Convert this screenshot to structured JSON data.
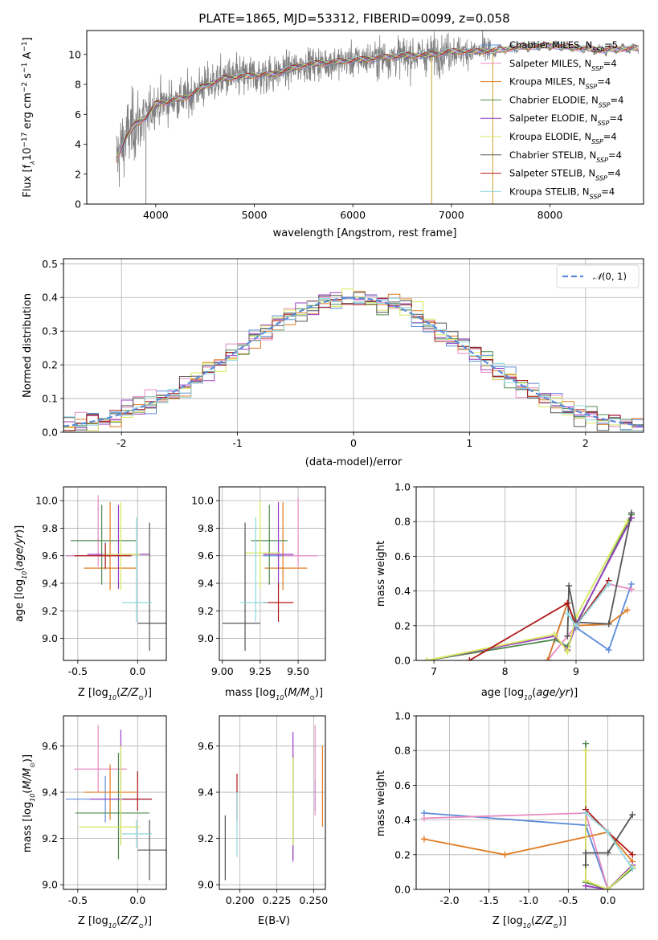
{
  "title": "PLATE=1865, MJD=53312, FIBERID=0099, z=0.058",
  "colors": {
    "Chabrier MILES": "#5b8bd8",
    "Salpeter MILES": "#e78ac3",
    "Kroupa MILES": "#e07b21",
    "Chabrier ELODIE": "#4f8a4f",
    "Salpeter ELODIE": "#9b3cc4",
    "Kroupa ELODIE": "#d6e85a",
    "Chabrier STELIB": "#555555",
    "Salpeter STELIB": "#b01818",
    "Kroupa STELIB": "#8fd6dd",
    "data": "#808080",
    "gaussian": "#5b8bd8"
  },
  "chart_data": [
    {
      "id": "spectrum",
      "type": "line",
      "title": "PLATE=1865, MJD=53312, FIBERID=0099, z=0.058",
      "xlabel": "wavelength [Angstrom, rest frame]",
      "ylabel": "Flux [fλ10⁻¹⁷ erg cm⁻² s⁻¹ A⁻¹]",
      "xlim": [
        3300,
        8950
      ],
      "ylim": [
        0,
        11.6
      ],
      "xticks": [
        4000,
        5000,
        6000,
        7000,
        8000
      ],
      "yticks": [
        0,
        2,
        4,
        6,
        8,
        10
      ],
      "legend_position": "upper right",
      "legend": [
        {
          "label": "Chabrier MILES, N",
          "sub": "SSP",
          "tail": "=5"
        },
        {
          "label": "Salpeter MILES, N",
          "sub": "SSP",
          "tail": "=4"
        },
        {
          "label": "Kroupa MILES, N",
          "sub": "SSP",
          "tail": "=4"
        },
        {
          "label": "Chabrier ELODIE, N",
          "sub": "SSP",
          "tail": "=4"
        },
        {
          "label": "Salpeter ELODIE, N",
          "sub": "SSP",
          "tail": "=4"
        },
        {
          "label": "Kroupa ELODIE, N",
          "sub": "SSP",
          "tail": "=4"
        },
        {
          "label": "Chabrier STELIB, N",
          "sub": "SSP",
          "tail": "=4"
        },
        {
          "label": "Salpeter STELIB, N",
          "sub": "SSP",
          "tail": "=4"
        },
        {
          "label": "Kroupa STELIB, N",
          "sub": "SSP",
          "tail": "=4"
        }
      ],
      "continuum": {
        "x": [
          3600,
          3700,
          3800,
          3900,
          4000,
          4100,
          4200,
          4300,
          4500,
          4700,
          5000,
          5200,
          5500,
          5800,
          6000,
          6300,
          6500,
          6800,
          7000,
          7300,
          7500,
          7700,
          8000,
          8200,
          8500,
          8800
        ],
        "y": [
          3.0,
          4.5,
          5.4,
          5.8,
          6.7,
          6.8,
          7.0,
          7.1,
          7.9,
          8.4,
          8.6,
          8.7,
          9.3,
          9.5,
          9.6,
          9.8,
          9.9,
          10.0,
          10.2,
          10.2,
          10.3,
          10.5,
          10.6,
          10.5,
          10.3,
          10.4
        ]
      },
      "data_noise_end": 7420
    },
    {
      "id": "residuals",
      "type": "bar",
      "xlabel": "(data-model)/error",
      "ylabel": "Normed distribution",
      "xlim": [
        -2.5,
        2.5
      ],
      "ylim": [
        0,
        0.515
      ],
      "xticks": [
        -2,
        -1,
        0,
        1,
        2
      ],
      "yticks": [
        0.0,
        0.1,
        0.2,
        0.3,
        0.4,
        0.5
      ],
      "legend_position": "upper right",
      "gaussian_label": "𝒩(0, 1)",
      "bin_width": 0.1
    },
    {
      "id": "age-vs-Z",
      "type": "scatter",
      "xlabel": "Z [log₁₀(Z/Z⊙)]",
      "ylabel": "age  [log₁₀(age/yr)]",
      "xlim": [
        -0.62,
        0.24
      ],
      "ylim": [
        8.84,
        10.1
      ],
      "xticks": [
        -0.5,
        0.0
      ],
      "yticks": [
        9.0,
        9.2,
        9.4,
        9.6,
        9.8,
        10.0
      ],
      "points": [
        {
          "model": "Chabrier MILES",
          "x": -0.27,
          "xerr": [
            0.33,
            0.21
          ],
          "y": 9.6,
          "yerr": [
            0.1,
            0.1
          ]
        },
        {
          "model": "Salpeter MILES",
          "x": -0.33,
          "xerr": [
            0.27,
            0.24
          ],
          "y": 9.6,
          "yerr": [
            0.08,
            0.44
          ]
        },
        {
          "model": "Kroupa MILES",
          "x": -0.23,
          "xerr": [
            0.22,
            0.22
          ],
          "y": 9.51,
          "yerr": [
            0.16,
            0.48
          ]
        },
        {
          "model": "Chabrier ELODIE",
          "x": -0.3,
          "xerr": [
            0.26,
            0.29
          ],
          "y": 9.71,
          "yerr": [
            0.32,
            0.26
          ]
        },
        {
          "model": "Salpeter ELODIE",
          "x": -0.16,
          "xerr": [
            0.26,
            0.26
          ],
          "y": 9.61,
          "yerr": [
            0.25,
            0.36
          ]
        },
        {
          "model": "Kroupa ELODIE",
          "x": -0.14,
          "xerr": [
            0.15,
            0.16
          ],
          "y": 9.61,
          "yerr": [
            0.26,
            0.38
          ]
        },
        {
          "model": "Chabrier STELIB",
          "x": 0.1,
          "xerr": [
            0.1,
            0.21
          ],
          "y": 9.11,
          "yerr": [
            0.2,
            0.73
          ]
        },
        {
          "model": "Salpeter STELIB",
          "x": -0.27,
          "xerr": [
            0.26,
            0.22
          ],
          "y": 9.6,
          "yerr": [
            0.09,
            0.09
          ]
        },
        {
          "model": "Kroupa STELIB",
          "x": -0.01,
          "xerr": [
            0.12,
            0.13
          ],
          "y": 9.26,
          "yerr": [
            0.14,
            0.62
          ]
        }
      ]
    },
    {
      "id": "age-vs-mass",
      "type": "scatter",
      "xlabel": "mass [log₁₀(M/M⊙)]",
      "ylabel": "",
      "xlim": [
        8.98,
        9.68
      ],
      "ylim": [
        8.84,
        10.1
      ],
      "xticks": [
        9.0,
        9.25,
        9.5
      ],
      "yticks": [
        9.0,
        9.2,
        9.4,
        9.6,
        9.8,
        10.0
      ],
      "points": [
        {
          "model": "Chabrier MILES",
          "x": 9.37,
          "xerr": [
            0.1,
            0.1
          ],
          "y": 9.6,
          "yerr": [
            0.1,
            0.1
          ]
        },
        {
          "model": "Salpeter MILES",
          "x": 9.5,
          "xerr": [
            0.1,
            0.13
          ],
          "y": 9.6,
          "yerr": [
            0.08,
            0.42
          ]
        },
        {
          "model": "Kroupa MILES",
          "x": 9.4,
          "xerr": [
            0.12,
            0.16
          ],
          "y": 9.51,
          "yerr": [
            0.16,
            0.48
          ]
        },
        {
          "model": "Chabrier ELODIE",
          "x": 9.31,
          "xerr": [
            0.12,
            0.12
          ],
          "y": 9.71,
          "yerr": [
            0.32,
            0.26
          ]
        },
        {
          "model": "Salpeter ELODIE",
          "x": 9.37,
          "xerr": [
            0.1,
            0.1
          ],
          "y": 9.61,
          "yerr": [
            0.25,
            0.38
          ]
        },
        {
          "model": "Kroupa ELODIE",
          "x": 9.25,
          "xerr": [
            0.1,
            0.13
          ],
          "y": 9.62,
          "yerr": [
            0.26,
            0.38
          ]
        },
        {
          "model": "Chabrier STELIB",
          "x": 9.15,
          "xerr": [
            0.15,
            0.1
          ],
          "y": 9.11,
          "yerr": [
            0.2,
            0.73
          ]
        },
        {
          "model": "Salpeter STELIB",
          "x": 9.37,
          "xerr": [
            0.1,
            0.1
          ],
          "y": 9.26,
          "yerr": [
            0.14,
            0.14
          ]
        },
        {
          "model": "Kroupa STELIB",
          "x": 9.22,
          "xerr": [
            0.1,
            0.08
          ],
          "y": 9.26,
          "yerr": [
            0.14,
            0.62
          ]
        }
      ]
    },
    {
      "id": "weights-vs-age",
      "type": "line",
      "xlabel": "age  [log₁₀(age/yr)]",
      "ylabel": "mass weight",
      "xlim": [
        6.75,
        9.95
      ],
      "ylim": [
        0,
        1.0
      ],
      "xticks": [
        7,
        8,
        9
      ],
      "yticks": [
        0.0,
        0.2,
        0.4,
        0.6,
        0.8,
        1.0
      ],
      "series": [
        {
          "model": "Chabrier MILES",
          "x": [
            8.6,
            8.88,
            9.0,
            9.46,
            9.78
          ],
          "y": [
            0.0,
            0.33,
            0.19,
            0.06,
            0.44
          ]
        },
        {
          "model": "Salpeter MILES",
          "x": [
            8.6,
            8.88,
            9.0,
            9.46,
            9.78
          ],
          "y": [
            0.0,
            0.14,
            0.2,
            0.44,
            0.41
          ]
        },
        {
          "model": "Kroupa MILES",
          "x": [
            8.6,
            8.88,
            9.0,
            9.46,
            9.72
          ],
          "y": [
            0.0,
            0.33,
            0.2,
            0.21,
            0.29
          ]
        },
        {
          "model": "Chabrier ELODIE",
          "x": [
            6.9,
            8.7,
            8.88,
            9.0,
            9.78
          ],
          "y": [
            0.0,
            0.12,
            0.08,
            0.2,
            0.84
          ]
        },
        {
          "model": "Salpeter ELODIE",
          "x": [
            6.9,
            8.7,
            8.88,
            9.0,
            9.78
          ],
          "y": [
            0.0,
            0.14,
            0.06,
            0.21,
            0.82
          ]
        },
        {
          "model": "Kroupa ELODIE",
          "x": [
            6.9,
            8.7,
            8.88,
            9.0,
            9.72
          ],
          "y": [
            0.0,
            0.15,
            0.05,
            0.25,
            0.8
          ]
        },
        {
          "model": "Chabrier STELIB",
          "x": [
            8.88,
            8.9,
            9.0,
            9.46,
            9.78
          ],
          "y": [
            0.14,
            0.43,
            0.22,
            0.21,
            0.85
          ]
        },
        {
          "model": "Salpeter STELIB",
          "x": [
            7.5,
            8.88,
            9.0,
            9.46
          ],
          "y": [
            0.0,
            0.33,
            0.2,
            0.46
          ]
        },
        {
          "model": "Kroupa STELIB",
          "x": [
            8.88,
            9.0,
            9.46
          ],
          "y": [
            0.27,
            0.2,
            0.44
          ]
        }
      ]
    },
    {
      "id": "mass-vs-Z",
      "type": "scatter",
      "xlabel": "Z [log₁₀(Z/Z⊙)]",
      "ylabel": "mass [log₁₀(M/M⊙)]",
      "xlim": [
        -0.62,
        0.24
      ],
      "ylim": [
        8.98,
        9.73
      ],
      "xticks": [
        -0.5,
        0.0
      ],
      "yticks": [
        9.0,
        9.2,
        9.4,
        9.6
      ],
      "points": [
        {
          "model": "Chabrier MILES",
          "x": -0.27,
          "xerr": [
            0.33,
            0.21
          ],
          "y": 9.37,
          "yerr": [
            0.1,
            0.1
          ]
        },
        {
          "model": "Salpeter MILES",
          "x": -0.33,
          "xerr": [
            0.2,
            0.24
          ],
          "y": 9.5,
          "yerr": [
            0.1,
            0.19
          ]
        },
        {
          "model": "Kroupa MILES",
          "x": -0.23,
          "xerr": [
            0.22,
            0.22
          ],
          "y": 9.4,
          "yerr": [
            0.12,
            0.12
          ]
        },
        {
          "model": "Chabrier ELODIE",
          "x": -0.16,
          "xerr": [
            0.36,
            0.26
          ],
          "y": 9.31,
          "yerr": [
            0.2,
            0.26
          ]
        },
        {
          "model": "Salpeter ELODIE",
          "x": -0.14,
          "xerr": [
            0.26,
            0.26
          ],
          "y": 9.37,
          "yerr": [
            0.2,
            0.3
          ]
        },
        {
          "model": "Kroupa ELODIE",
          "x": -0.14,
          "xerr": [
            0.35,
            0.16
          ],
          "y": 9.25,
          "yerr": [
            0.08,
            0.35
          ]
        },
        {
          "model": "Chabrier STELIB",
          "x": 0.1,
          "xerr": [
            0.1,
            0.21
          ],
          "y": 9.15,
          "yerr": [
            0.13,
            0.13
          ]
        },
        {
          "model": "Salpeter STELIB",
          "x": -0.0,
          "xerr": [
            0.12,
            0.12
          ],
          "y": 9.37,
          "yerr": [
            0.05,
            0.12
          ]
        },
        {
          "model": "Kroupa STELIB",
          "x": -0.01,
          "xerr": [
            0.12,
            0.13
          ],
          "y": 9.22,
          "yerr": [
            0.06,
            0.06
          ]
        }
      ]
    },
    {
      "id": "mass-vs-ebv",
      "type": "scatter",
      "xlabel": "E(B-V)",
      "ylabel": "",
      "xlim": [
        0.186,
        0.258
      ],
      "ylim": [
        8.98,
        9.73
      ],
      "xticks": [
        0.2,
        0.225,
        0.25
      ],
      "yticks": [
        9.0,
        9.2,
        9.4,
        9.6
      ],
      "points": [
        {
          "model": "Chabrier MILES",
          "x": 0.251,
          "y": 9.37,
          "yerr": [
            0.05,
            0.08
          ]
        },
        {
          "model": "Salpeter MILES",
          "x": 0.251,
          "y": 9.5,
          "yerr": [
            0.2,
            0.19
          ]
        },
        {
          "model": "Kroupa MILES",
          "x": 0.256,
          "y": 9.4,
          "yerr": [
            0.15,
            0.2
          ]
        },
        {
          "model": "Chabrier ELODIE",
          "x": 0.236,
          "y": 9.31,
          "yerr": [
            0.2,
            0.25
          ]
        },
        {
          "model": "Salpeter ELODIE",
          "x": 0.236,
          "y": 9.37,
          "yerr": [
            0.27,
            0.29
          ]
        },
        {
          "model": "Kroupa ELODIE",
          "x": 0.236,
          "y": 9.25,
          "yerr": [
            0.08,
            0.3
          ]
        },
        {
          "model": "Chabrier STELIB",
          "x": 0.19,
          "y": 9.15,
          "yerr": [
            0.13,
            0.15
          ]
        },
        {
          "model": "Salpeter STELIB",
          "x": 0.198,
          "y": 9.4,
          "yerr": [
            0.12,
            0.08
          ]
        },
        {
          "model": "Kroupa STELIB",
          "x": 0.198,
          "y": 9.26,
          "yerr": [
            0.14,
            0.14
          ]
        }
      ]
    },
    {
      "id": "weights-vs-Z",
      "type": "line",
      "xlabel": "Z [log₁₀(Z/Z⊙)]",
      "ylabel": "mass weight",
      "xlim": [
        -2.42,
        0.45
      ],
      "ylim": [
        0,
        1.0
      ],
      "xticks": [
        -2.0,
        -1.5,
        -1.0,
        -0.5,
        0.0
      ],
      "yticks": [
        0.0,
        0.2,
        0.4,
        0.6,
        0.8,
        1.0
      ],
      "series": [
        {
          "model": "Chabrier MILES",
          "x": [
            -2.32,
            -0.28,
            0.0,
            0.31
          ],
          "y": [
            0.44,
            0.37,
            0.0,
            0.12
          ]
        },
        {
          "model": "Salpeter MILES",
          "x": [
            -2.32,
            -0.28,
            0.0,
            0.31
          ],
          "y": [
            0.41,
            0.44,
            0.0,
            0.14
          ]
        },
        {
          "model": "Kroupa MILES",
          "x": [
            -2.32,
            -1.3,
            0.0,
            0.31
          ],
          "y": [
            0.29,
            0.2,
            0.33,
            0.16
          ]
        },
        {
          "model": "Chabrier ELODIE",
          "x": [
            -0.28,
            -0.28,
            0.0,
            0.31
          ],
          "y": [
            0.84,
            0.04,
            0.0,
            0.12
          ]
        },
        {
          "model": "Salpeter ELODIE",
          "x": [
            -0.28,
            -0.28,
            0.0,
            0.31
          ],
          "y": [
            0.8,
            0.02,
            0.0,
            0.14
          ]
        },
        {
          "model": "Kroupa ELODIE",
          "x": [
            -0.28,
            -0.28,
            0.0,
            0.31
          ],
          "y": [
            0.8,
            0.05,
            0.0,
            0.13
          ]
        },
        {
          "model": "Chabrier STELIB",
          "x": [
            -0.28,
            -0.28,
            0.0,
            0.31
          ],
          "y": [
            0.14,
            0.21,
            0.21,
            0.43
          ]
        },
        {
          "model": "Salpeter STELIB",
          "x": [
            -0.28,
            0.0,
            0.31
          ],
          "y": [
            0.46,
            0.33,
            0.2
          ]
        },
        {
          "model": "Kroupa STELIB",
          "x": [
            -0.28,
            0.0,
            0.31
          ],
          "y": [
            0.44,
            0.33,
            0.12
          ]
        }
      ]
    }
  ]
}
